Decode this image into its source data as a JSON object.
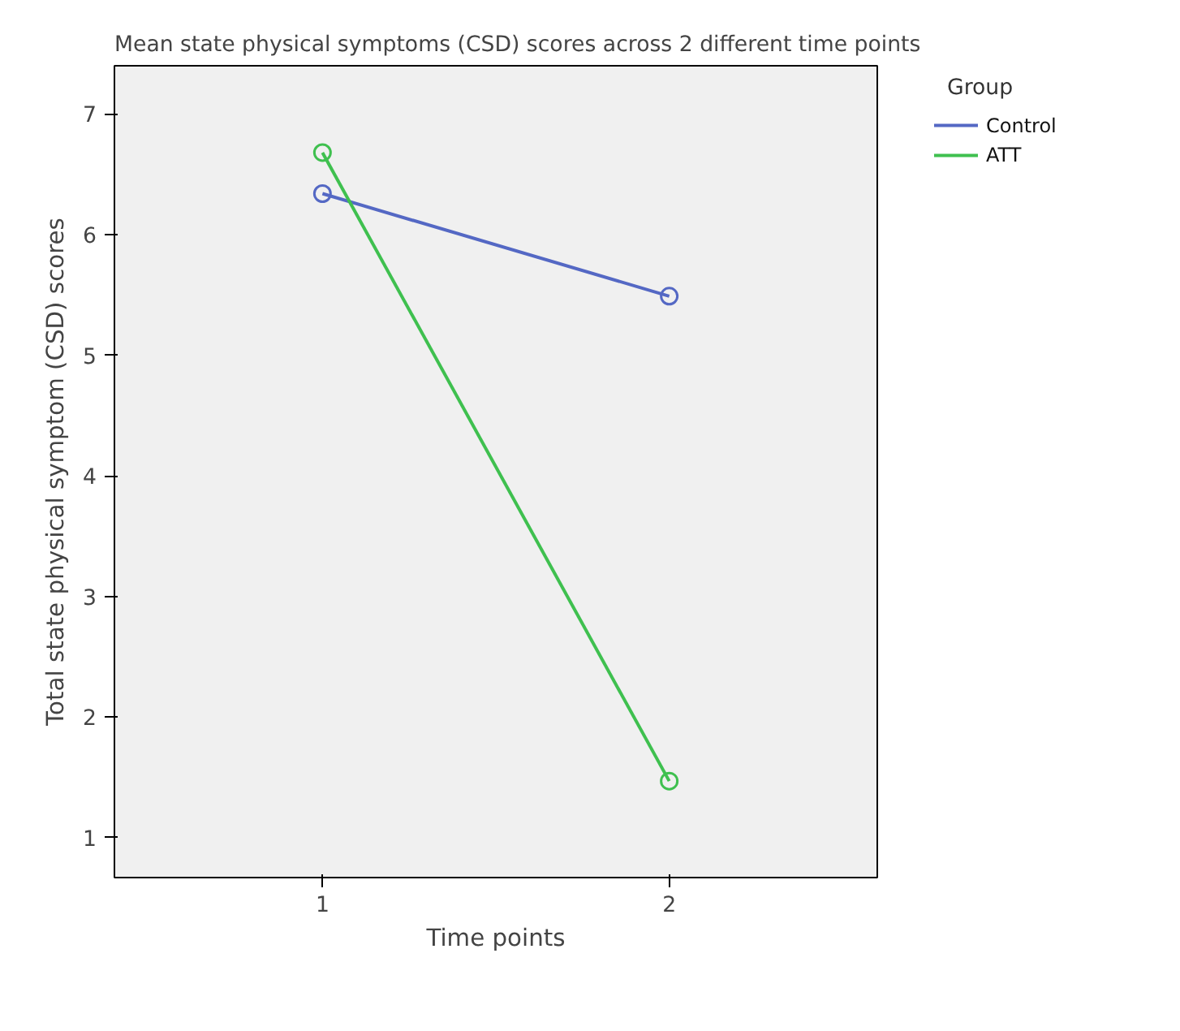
{
  "chart_data": {
    "type": "line",
    "title": "Mean state physical symptoms (CSD) scores across 2 different time points",
    "xlabel": "Time points",
    "ylabel": "Total state physical symptom (CSD) scores",
    "legend_title": "Group",
    "x": [
      1,
      2
    ],
    "series": [
      {
        "name": "Control",
        "color": "#5468c4",
        "values": [
          6.34,
          5.49
        ]
      },
      {
        "name": "ATT",
        "color": "#3fc04f",
        "values": [
          6.68,
          1.47
        ]
      }
    ],
    "xlim": [
      0.4,
      2.6
    ],
    "xticks": [
      1,
      2
    ],
    "ylim": [
      0.67,
      7.4
    ],
    "yticks": [
      1,
      2,
      3,
      4,
      5,
      6,
      7
    ],
    "grid": false,
    "legend": "right",
    "marker": "circle",
    "line_style": "solid"
  }
}
